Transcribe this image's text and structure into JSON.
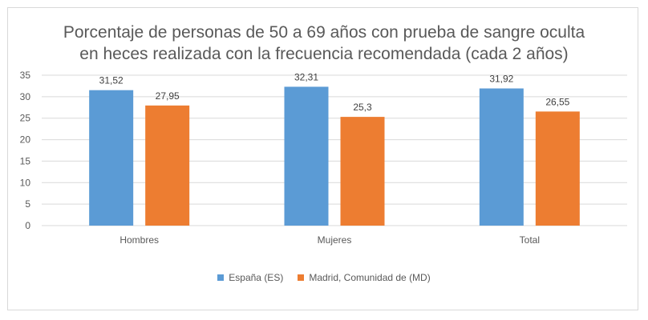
{
  "chart_data": {
    "type": "bar",
    "title_lines": [
      "Porcentaje de personas de 50 a 69 años con prueba de sangre oculta",
      "en heces realizada con la frecuencia recomendada (cada 2 años)"
    ],
    "categories": [
      "Hombres",
      "Mujeres",
      "Total"
    ],
    "series": [
      {
        "name": "España (ES)",
        "color": "#5b9bd5",
        "values": [
          31.52,
          32.31,
          31.92
        ],
        "labels": [
          "31,52",
          "32,31",
          "31,92"
        ]
      },
      {
        "name": "Madrid, Comunidad de (MD)",
        "color": "#ed7d31",
        "values": [
          27.95,
          25.3,
          26.55
        ],
        "labels": [
          "27,95",
          "25,3",
          "26,55"
        ]
      }
    ],
    "yticks": [
      "0",
      "5",
      "10",
      "15",
      "20",
      "25",
      "30",
      "35"
    ],
    "ylim": [
      0,
      35
    ],
    "grid": true,
    "legend_position": "bottom"
  }
}
